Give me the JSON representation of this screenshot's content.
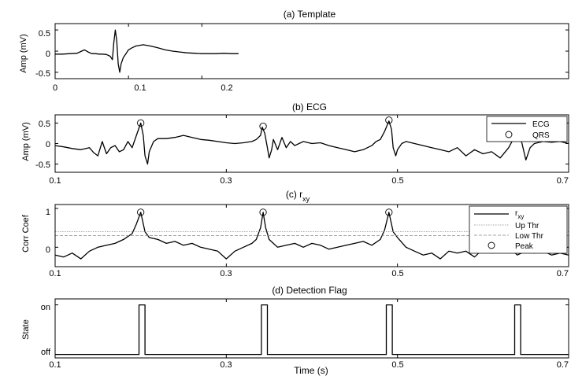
{
  "chart_data": [
    {
      "type": "line",
      "title": "(a) Template",
      "xlabel": "",
      "ylabel": "Amp (mV)",
      "xlim": [
        0,
        0.7
      ],
      "ylim": [
        -0.65,
        0.65
      ],
      "xticks": [
        0,
        0.1,
        0.2
      ],
      "xtick_labels": [
        "0",
        "0.1",
        "0.2"
      ],
      "yticks": [
        0.5,
        0,
        -0.5
      ],
      "ytick_labels": [
        "0.5",
        "0",
        "-0.5"
      ],
      "series": [
        {
          "x": [
            0,
            0.01,
            0.02,
            0.03,
            0.035,
            0.04,
            0.045,
            0.05,
            0.055,
            0.06,
            0.065,
            0.07,
            0.075,
            0.078,
            0.08,
            0.082,
            0.084,
            0.086,
            0.088,
            0.09,
            0.093,
            0.097,
            0.1,
            0.105,
            0.11,
            0.12,
            0.13,
            0.14,
            0.15,
            0.16,
            0.17,
            0.18,
            0.19,
            0.2,
            0.21,
            0.22,
            0.23,
            0.24,
            0.25
          ],
          "y": [
            -0.07,
            -0.07,
            -0.06,
            -0.05,
            -0.01,
            0.03,
            -0.02,
            -0.06,
            -0.06,
            -0.07,
            -0.07,
            -0.08,
            -0.12,
            -0.2,
            0.2,
            0.5,
            0.25,
            -0.3,
            -0.5,
            -0.3,
            -0.15,
            -0.05,
            0.03,
            0.08,
            0.12,
            0.15,
            0.12,
            0.08,
            0.03,
            0,
            -0.02,
            -0.04,
            -0.05,
            -0.06,
            -0.06,
            -0.06,
            -0.05,
            -0.06,
            -0.06
          ]
        }
      ]
    },
    {
      "type": "line",
      "title": "(b) ECG",
      "xlabel": "",
      "ylabel": "Amp (mV)",
      "xlim": [
        0.1,
        0.7
      ],
      "ylim": [
        -0.7,
        0.7
      ],
      "xticks": [
        0.1,
        0.3,
        0.5,
        0.7
      ],
      "xtick_labels": [
        "0.1",
        "0.3",
        "0.5",
        "0.7"
      ],
      "yticks": [
        0.5,
        0,
        -0.5
      ],
      "ytick_labels": [
        "0.5",
        "0",
        "-0.5"
      ],
      "legend": {
        "location": "top-right",
        "entries": [
          "ECG",
          "QRS"
        ]
      },
      "series": [
        {
          "name": "ECG",
          "x": [
            0.1,
            0.11,
            0.12,
            0.13,
            0.14,
            0.145,
            0.15,
            0.155,
            0.16,
            0.165,
            0.17,
            0.175,
            0.18,
            0.185,
            0.19,
            0.195,
            0.2,
            0.203,
            0.205,
            0.208,
            0.21,
            0.215,
            0.22,
            0.23,
            0.24,
            0.25,
            0.26,
            0.27,
            0.28,
            0.29,
            0.3,
            0.31,
            0.32,
            0.33,
            0.335,
            0.34,
            0.342,
            0.345,
            0.348,
            0.35,
            0.353,
            0.355,
            0.36,
            0.365,
            0.37,
            0.375,
            0.38,
            0.39,
            0.4,
            0.41,
            0.42,
            0.43,
            0.44,
            0.45,
            0.46,
            0.47,
            0.475,
            0.48,
            0.485,
            0.49,
            0.493,
            0.495,
            0.498,
            0.5,
            0.505,
            0.51,
            0.52,
            0.53,
            0.54,
            0.55,
            0.56,
            0.57,
            0.58,
            0.59,
            0.6,
            0.61,
            0.62,
            0.63,
            0.635,
            0.64,
            0.645,
            0.65,
            0.655,
            0.66,
            0.67,
            0.68,
            0.69,
            0.7
          ],
          "y": [
            -0.05,
            -0.08,
            -0.12,
            -0.15,
            -0.1,
            -0.22,
            -0.3,
            0.05,
            -0.25,
            -0.1,
            -0.05,
            -0.2,
            -0.15,
            0.05,
            -0.1,
            0.2,
            0.5,
            0.2,
            -0.3,
            -0.5,
            -0.2,
            0.05,
            0.12,
            0.12,
            0.15,
            0.2,
            0.15,
            0.1,
            0.08,
            0.05,
            0.02,
            0,
            0.02,
            0.05,
            0.1,
            0.2,
            0.4,
            0.25,
            -0.1,
            -0.35,
            -0.15,
            0.1,
            -0.15,
            0.15,
            -0.1,
            0.05,
            -0.05,
            0.05,
            0,
            0.02,
            -0.05,
            -0.1,
            -0.15,
            -0.2,
            -0.15,
            -0.05,
            0.05,
            0.1,
            0.3,
            0.55,
            0.35,
            -0.1,
            -0.3,
            -0.15,
            0,
            0.05,
            0,
            -0.05,
            -0.1,
            -0.15,
            -0.2,
            -0.1,
            -0.3,
            -0.15,
            -0.25,
            -0.2,
            -0.35,
            -0.1,
            0.1,
            0.2,
            0.05,
            -0.4,
            -0.1,
            0,
            0.05,
            0.03,
            0.05,
            0
          ]
        },
        {
          "name": "QRS",
          "x": [
            0.2,
            0.343,
            0.49,
            0.64
          ],
          "y": [
            0.5,
            0.42,
            0.57,
            0.22
          ]
        }
      ]
    },
    {
      "type": "line",
      "title": "(c) r_xy",
      "title_main": "(c) r",
      "title_sub": "xy",
      "xlabel": "",
      "ylabel": "Corr Coef",
      "xlim": [
        0.1,
        0.7
      ],
      "ylim": [
        -0.5,
        1.1
      ],
      "xticks": [
        0.1,
        0.3,
        0.5,
        0.7
      ],
      "xtick_labels": [
        "0.1",
        "0.3",
        "0.5",
        "0.7"
      ],
      "yticks": [
        1,
        0
      ],
      "ytick_labels": [
        "1",
        "0"
      ],
      "legend": {
        "location": "top-right",
        "entries": [
          "r_xy",
          "Up Thr",
          "Low Thr",
          "Peak"
        ],
        "first_main": "r",
        "first_sub": "xy"
      },
      "series": [
        {
          "name": "r_xy",
          "x": [
            0.1,
            0.11,
            0.12,
            0.13,
            0.14,
            0.15,
            0.16,
            0.17,
            0.18,
            0.19,
            0.195,
            0.2,
            0.205,
            0.21,
            0.22,
            0.23,
            0.24,
            0.25,
            0.26,
            0.27,
            0.28,
            0.29,
            0.3,
            0.31,
            0.32,
            0.33,
            0.335,
            0.34,
            0.343,
            0.346,
            0.35,
            0.355,
            0.36,
            0.37,
            0.38,
            0.39,
            0.4,
            0.41,
            0.42,
            0.43,
            0.44,
            0.45,
            0.46,
            0.47,
            0.48,
            0.485,
            0.49,
            0.495,
            0.5,
            0.51,
            0.52,
            0.53,
            0.54,
            0.55,
            0.56,
            0.57,
            0.58,
            0.59,
            0.6,
            0.61,
            0.62,
            0.63,
            0.64,
            0.65,
            0.66,
            0.67,
            0.68,
            0.69,
            0.7
          ],
          "y": [
            -0.2,
            -0.25,
            -0.15,
            -0.3,
            -0.1,
            0,
            0.05,
            0.1,
            0.2,
            0.35,
            0.6,
            0.9,
            0.4,
            0.25,
            0.2,
            0.1,
            0.15,
            0.05,
            0.1,
            0,
            -0.05,
            -0.1,
            -0.3,
            -0.1,
            0,
            0.1,
            0.2,
            0.5,
            0.9,
            0.5,
            0.2,
            0.1,
            0,
            0.05,
            0.1,
            0,
            0.1,
            0.05,
            -0.05,
            0,
            0.05,
            0.1,
            0.15,
            0.05,
            0.2,
            0.45,
            0.9,
            0.4,
            0.25,
            0,
            -0.1,
            -0.2,
            -0.15,
            -0.3,
            -0.1,
            -0.15,
            -0.1,
            -0.25,
            -0.05,
            -0.15,
            -0.1,
            0,
            -0.2,
            -0.1,
            -0.15,
            -0.1,
            -0.2,
            -0.15,
            -0.2
          ]
        },
        {
          "name": "Up Thr",
          "x": [
            0.1,
            0.7
          ],
          "y": [
            0.4,
            0.4
          ]
        },
        {
          "name": "Low Thr",
          "x": [
            0.1,
            0.7
          ],
          "y": [
            0.3,
            0.3
          ]
        },
        {
          "name": "Peak",
          "x": [
            0.2,
            0.343,
            0.49
          ],
          "y": [
            0.9,
            0.9,
            0.9
          ]
        }
      ]
    },
    {
      "type": "line",
      "title": "(d) Detection Flag",
      "xlabel": "Time (s)",
      "ylabel": "State",
      "xlim": [
        0.1,
        0.7
      ],
      "ylim": [
        -0.07,
        1.12
      ],
      "xticks": [
        0.1,
        0.3,
        0.5,
        0.7
      ],
      "xtick_labels": [
        "0.1",
        "0.3",
        "0.5",
        "0.7"
      ],
      "yticks": [
        1,
        0
      ],
      "ytick_labels": [
        "on",
        "off"
      ],
      "series": [
        {
          "x": [
            0.1,
            0.198,
            0.198,
            0.205,
            0.205,
            0.341,
            0.341,
            0.348,
            0.348,
            0.487,
            0.487,
            0.494,
            0.494,
            0.637,
            0.637,
            0.644,
            0.644,
            0.7
          ],
          "y": [
            0,
            0,
            1,
            1,
            0,
            0,
            1,
            1,
            0,
            0,
            1,
            1,
            0,
            0,
            1,
            1,
            0,
            0
          ]
        }
      ]
    }
  ]
}
